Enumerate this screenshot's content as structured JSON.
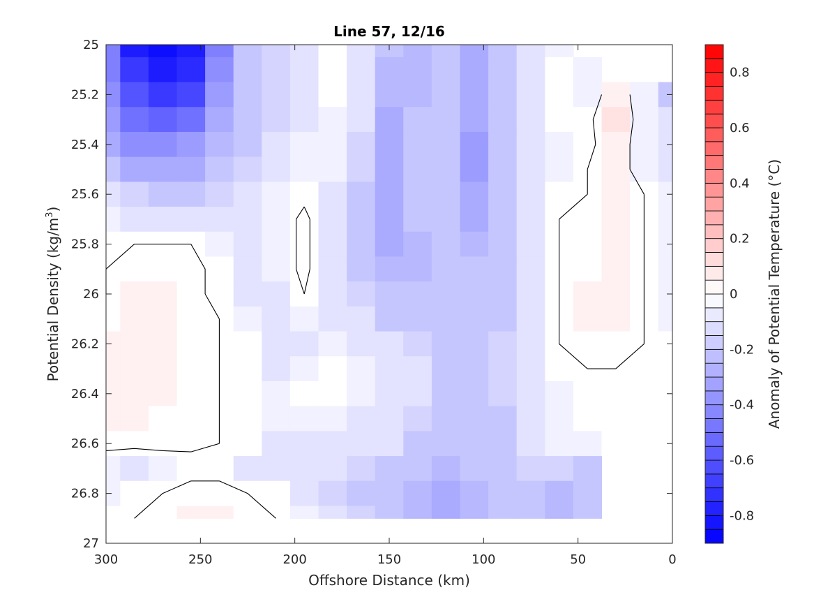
{
  "chart_data": {
    "type": "heatmap",
    "subtype": "filled-contour",
    "title": "Line 57, 12/16",
    "xlabel": "Offshore Distance (km)",
    "ylabel": "Potential Density (kg/m",
    "ylabel_sup": "3",
    "ylabel_close": ")",
    "colorbar_label": "Anomaly of Potential Temperature (°C)",
    "x_direction": "reversed",
    "y_direction": "reversed",
    "xlim": [
      300,
      0
    ],
    "ylim": [
      25,
      27
    ],
    "x_ticks": [
      300,
      250,
      200,
      150,
      100,
      50,
      0
    ],
    "x_tick_labels": [
      "300",
      "250",
      "200",
      "150",
      "100",
      "50",
      "0"
    ],
    "y_ticks": [
      25,
      25.2,
      25.4,
      25.6,
      25.8,
      26,
      26.2,
      26.4,
      26.6,
      26.8,
      27
    ],
    "y_tick_labels": [
      "25",
      "25.2",
      "25.4",
      "25.6",
      "25.8",
      "26",
      "26.2",
      "26.4",
      "26.6",
      "26.8",
      "27"
    ],
    "clim": [
      -0.9,
      0.9
    ],
    "contour_step": 0.05,
    "colorbar_ticks": [
      -0.8,
      -0.6,
      -0.4,
      -0.2,
      0,
      0.2,
      0.4,
      0.6,
      0.8
    ],
    "colorbar_tick_labels": [
      "-0.8",
      "-0.6",
      "-0.4",
      "-0.2",
      "0",
      "0.2",
      "0.4",
      "0.6",
      "0.8"
    ],
    "colormap": {
      "negative": "#0000ff",
      "zero": "#ffffff",
      "positive": "#ff0000"
    },
    "zero_contour_color": "#000000",
    "grid": false,
    "x": [
      300,
      285,
      270,
      255,
      240,
      225,
      210,
      195,
      180,
      165,
      150,
      135,
      120,
      105,
      90,
      75,
      60,
      45,
      30,
      15,
      0
    ],
    "y": [
      25.0,
      25.1,
      25.2,
      25.3,
      25.4,
      25.5,
      25.6,
      25.7,
      25.8,
      25.9,
      26.0,
      26.1,
      26.2,
      26.3,
      26.4,
      26.5,
      26.6,
      26.7,
      26.8,
      26.9
    ],
    "values": [
      [
        -0.45,
        -0.8,
        -0.85,
        -0.8,
        -0.45,
        -0.2,
        -0.15,
        -0.08,
        0.0,
        -0.1,
        -0.2,
        -0.25,
        -0.2,
        -0.28,
        -0.18,
        -0.1,
        -0.05,
        null,
        null,
        null,
        null
      ],
      [
        -0.45,
        -0.7,
        -0.8,
        -0.75,
        -0.4,
        -0.2,
        -0.15,
        -0.1,
        0.0,
        -0.12,
        -0.25,
        -0.25,
        -0.2,
        -0.3,
        -0.2,
        -0.12,
        0.0,
        -0.05,
        null,
        null,
        null
      ],
      [
        -0.4,
        -0.6,
        -0.7,
        -0.65,
        -0.35,
        -0.2,
        -0.15,
        -0.1,
        -0.02,
        -0.12,
        -0.25,
        -0.25,
        -0.22,
        -0.3,
        -0.2,
        -0.12,
        -0.02,
        -0.05,
        0.05,
        -0.05,
        -0.2
      ],
      [
        -0.35,
        -0.5,
        -0.55,
        -0.5,
        -0.3,
        -0.2,
        -0.15,
        -0.08,
        -0.05,
        -0.12,
        -0.28,
        -0.22,
        -0.22,
        -0.32,
        -0.22,
        -0.1,
        -0.02,
        -0.02,
        0.08,
        -0.05,
        -0.1
      ],
      [
        -0.3,
        -0.4,
        -0.4,
        -0.35,
        -0.25,
        -0.18,
        -0.12,
        -0.06,
        -0.05,
        -0.15,
        -0.3,
        -0.2,
        -0.22,
        -0.35,
        -0.22,
        -0.1,
        -0.05,
        -0.02,
        0.05,
        -0.05,
        -0.08
      ],
      [
        -0.22,
        -0.3,
        -0.3,
        -0.28,
        -0.2,
        -0.15,
        -0.1,
        -0.06,
        -0.05,
        -0.15,
        -0.3,
        -0.2,
        -0.22,
        -0.35,
        -0.22,
        -0.1,
        -0.05,
        0.0,
        0.05,
        -0.05,
        -0.08
      ],
      [
        -0.12,
        -0.15,
        -0.2,
        -0.2,
        -0.15,
        -0.12,
        -0.05,
        -0.02,
        -0.08,
        -0.18,
        -0.3,
        -0.22,
        -0.22,
        -0.32,
        -0.22,
        -0.1,
        0.0,
        0.0,
        0.05,
        0.0,
        -0.05
      ],
      [
        -0.05,
        -0.08,
        -0.1,
        -0.1,
        -0.1,
        -0.1,
        -0.05,
        0.02,
        -0.08,
        -0.2,
        -0.28,
        -0.22,
        -0.2,
        -0.28,
        -0.22,
        -0.1,
        0.0,
        0.02,
        0.05,
        0.0,
        -0.05
      ],
      [
        0.0,
        0.0,
        0.0,
        0.0,
        -0.05,
        -0.08,
        -0.05,
        0.02,
        -0.08,
        -0.2,
        -0.28,
        -0.25,
        -0.2,
        -0.25,
        -0.2,
        -0.1,
        0.0,
        0.02,
        0.05,
        0.0,
        -0.05
      ],
      [
        0.0,
        0.02,
        0.02,
        0.02,
        -0.02,
        -0.08,
        -0.05,
        0.02,
        -0.08,
        -0.18,
        -0.25,
        -0.25,
        -0.2,
        -0.22,
        -0.2,
        -0.1,
        0.0,
        0.02,
        0.05,
        0.0,
        -0.05
      ],
      [
        0.0,
        0.03,
        0.05,
        0.02,
        -0.02,
        -0.08,
        -0.08,
        0.0,
        -0.1,
        -0.15,
        -0.22,
        -0.22,
        -0.2,
        -0.2,
        -0.2,
        -0.1,
        0.0,
        0.05,
        0.05,
        0.0,
        -0.05
      ],
      [
        0.02,
        0.05,
        0.05,
        0.02,
        0.0,
        -0.05,
        -0.1,
        -0.05,
        -0.08,
        -0.12,
        -0.18,
        -0.2,
        -0.2,
        -0.18,
        -0.18,
        -0.1,
        0.0,
        0.05,
        0.05,
        0.0,
        -0.05
      ],
      [
        0.03,
        0.05,
        0.05,
        0.02,
        0.0,
        -0.02,
        -0.1,
        -0.08,
        -0.05,
        -0.08,
        -0.12,
        -0.15,
        -0.18,
        -0.18,
        -0.15,
        -0.1,
        0.0,
        0.02,
        0.02,
        0.0,
        -0.02
      ],
      [
        0.05,
        0.05,
        0.04,
        0.02,
        0.0,
        -0.02,
        -0.08,
        -0.05,
        -0.02,
        -0.05,
        -0.08,
        -0.12,
        -0.18,
        -0.18,
        -0.15,
        -0.1,
        -0.02,
        0.0,
        0.0,
        0.0,
        -0.02
      ],
      [
        0.04,
        0.04,
        0.03,
        0.02,
        0.0,
        -0.02,
        -0.05,
        -0.02,
        -0.02,
        -0.05,
        -0.08,
        -0.12,
        -0.18,
        -0.2,
        -0.15,
        -0.1,
        -0.05,
        -0.02,
        0.0,
        0.0,
        -0.02
      ],
      [
        0.03,
        0.03,
        0.02,
        0.01,
        0.0,
        -0.02,
        -0.05,
        -0.05,
        -0.05,
        -0.08,
        -0.1,
        -0.15,
        -0.18,
        -0.2,
        -0.18,
        -0.1,
        -0.05,
        -0.02,
        0.0,
        0.0,
        -0.02
      ],
      [
        0.02,
        0.02,
        0.02,
        0.01,
        0.0,
        -0.02,
        -0.08,
        -0.08,
        -0.08,
        -0.1,
        -0.12,
        -0.18,
        -0.2,
        -0.2,
        -0.18,
        -0.12,
        -0.05,
        -0.05,
        0.0,
        0.0,
        -0.02
      ],
      [
        -0.05,
        -0.08,
        -0.05,
        -0.02,
        -0.02,
        -0.08,
        -0.1,
        -0.1,
        -0.12,
        -0.15,
        -0.18,
        -0.22,
        -0.25,
        -0.22,
        -0.18,
        -0.15,
        -0.15,
        -0.18,
        null,
        null,
        null
      ],
      [
        -0.05,
        -0.02,
        0.0,
        0.02,
        0.02,
        0.0,
        -0.02,
        -0.1,
        -0.15,
        -0.18,
        -0.2,
        -0.25,
        -0.28,
        -0.25,
        -0.2,
        -0.2,
        -0.25,
        -0.2,
        null,
        null,
        null
      ],
      [
        -0.02,
        0.0,
        0.02,
        0.05,
        0.03,
        0.02,
        0.0,
        -0.05,
        -0.1,
        -0.15,
        -0.2,
        -0.25,
        -0.28,
        -0.25,
        -0.2,
        -0.22,
        -0.25,
        -0.2,
        null,
        null,
        null
      ]
    ]
  }
}
